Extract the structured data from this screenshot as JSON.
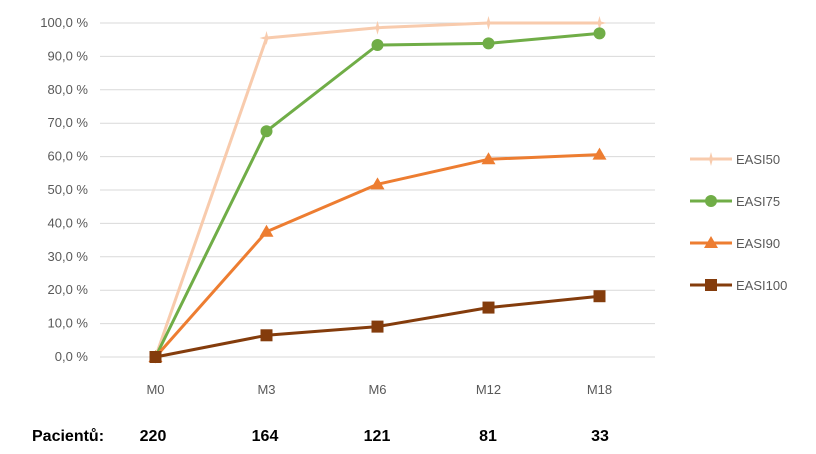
{
  "chart_data": {
    "type": "line",
    "categories": [
      "M0",
      "M3",
      "M6",
      "M12",
      "M18"
    ],
    "y_ticks": [
      "0,0 %",
      "10,0 %",
      "20,0 %",
      "30,0 %",
      "40,0 %",
      "50,0 %",
      "60,0 %",
      "70,0 %",
      "80,0 %",
      "90,0 %",
      "100,0 %"
    ],
    "ylim": [
      0,
      100
    ],
    "grid": true,
    "legend_position": "right",
    "series": [
      {
        "name": "EASI50",
        "color": "#F8CBAD",
        "marker": "star",
        "values": [
          0,
          95.5,
          98.6,
          100,
          100
        ]
      },
      {
        "name": "EASI75",
        "color": "#70AD47",
        "marker": "circle",
        "values": [
          0,
          67.6,
          93.4,
          93.9,
          96.9
        ]
      },
      {
        "name": "EASI90",
        "color": "#ED7D31",
        "marker": "triangle",
        "values": [
          0,
          37.5,
          51.7,
          59.2,
          60.6
        ]
      },
      {
        "name": "EASI100",
        "color": "#843C0C",
        "marker": "square",
        "values": [
          0,
          6.5,
          9.1,
          14.8,
          18.2
        ]
      }
    ]
  },
  "patients": {
    "label": "Pacientů:",
    "values": [
      "220",
      "164",
      "121",
      "81",
      "33"
    ]
  }
}
